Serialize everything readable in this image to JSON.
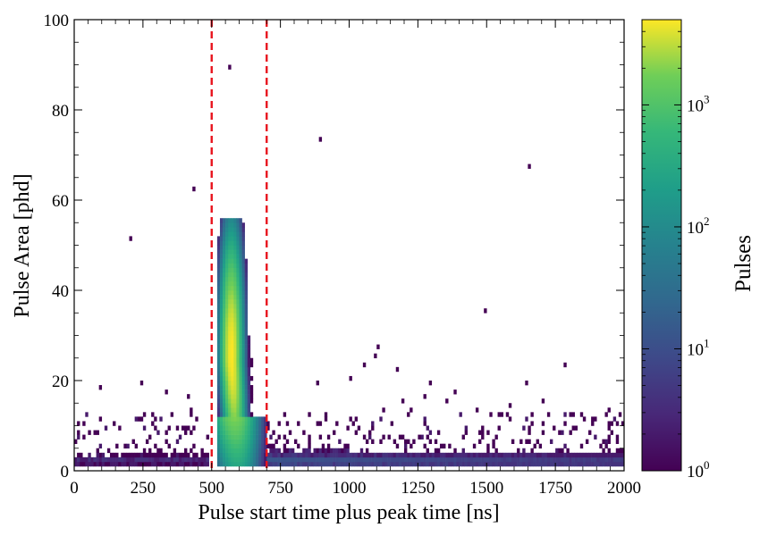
{
  "chart_data": {
    "type": "heatmap",
    "xlabel": "Pulse start time plus peak time [ns]",
    "ylabel": "Pulse Area [phd]",
    "xlim": [
      0,
      2000
    ],
    "ylim": [
      0,
      100
    ],
    "x_ticks": [
      0,
      250,
      500,
      750,
      1000,
      1250,
      1500,
      1750,
      2000
    ],
    "y_ticks": [
      0,
      20,
      40,
      60,
      80,
      100
    ],
    "bin_size": {
      "x": 10,
      "y": 1
    },
    "colormap": "viridis",
    "colorbar": {
      "label": "Pulses",
      "scale": "log",
      "range": [
        1,
        5000
      ],
      "ticks": [
        {
          "value": 1,
          "base": "10",
          "exp": "0"
        },
        {
          "value": 10,
          "base": "10",
          "exp": "1"
        },
        {
          "value": 100,
          "base": "10",
          "exp": "2"
        },
        {
          "value": 1000,
          "base": "10",
          "exp": "3"
        }
      ]
    },
    "cut_lines": [
      {
        "x": 500,
        "color": "#e8141e",
        "style": "dashed"
      },
      {
        "x": 700,
        "color": "#e8141e",
        "style": "dashed"
      }
    ],
    "isolated_bins": [
      [
        560,
        89.5
      ],
      [
        890,
        73.5
      ],
      [
        1650,
        67.5
      ],
      [
        430,
        62.5
      ],
      [
        200,
        51.5
      ],
      [
        1490,
        35.5
      ],
      [
        1100,
        27.5
      ],
      [
        1090,
        25.5
      ],
      [
        1780,
        23.5
      ],
      [
        1050,
        23.5
      ],
      [
        1170,
        22.5
      ],
      [
        1000,
        20.5
      ],
      [
        880,
        19.5
      ],
      [
        240,
        19.5
      ],
      [
        1290,
        19.5
      ],
      [
        1640,
        19.5
      ],
      [
        1380,
        17.5
      ],
      [
        90,
        18.5
      ],
      [
        330,
        17.5
      ],
      [
        410,
        16.5
      ],
      [
        1270,
        16.5
      ],
      [
        1190,
        15.5
      ],
      [
        1350,
        15.5
      ],
      [
        1700,
        15.5
      ],
      [
        1580,
        14.5
      ],
      [
        420,
        13.5
      ],
      [
        1120,
        13.5
      ],
      [
        1220,
        13.5
      ],
      [
        1460,
        13.5
      ],
      [
        1940,
        13.5
      ],
      [
        1800,
        12.5
      ],
      [
        1660,
        12.5
      ]
    ],
    "sparse_region": {
      "x_range": [
        0,
        2000
      ],
      "y_range": [
        3,
        13
      ],
      "max_count": 2
    },
    "dense_regions": [
      {
        "name": "band-pre",
        "x_range": [
          0,
          490
        ],
        "y_range": [
          1,
          3
        ],
        "peak": 4
      },
      {
        "name": "main-peak",
        "x_center": 572,
        "y_center": 26,
        "x_range": [
          530,
          700
        ],
        "y_range": [
          1,
          55
        ],
        "peak": 5000
      },
      {
        "name": "band-post",
        "x_range": [
          700,
          2000
        ],
        "y_range": [
          1,
          4
        ],
        "peak": 12
      }
    ]
  }
}
